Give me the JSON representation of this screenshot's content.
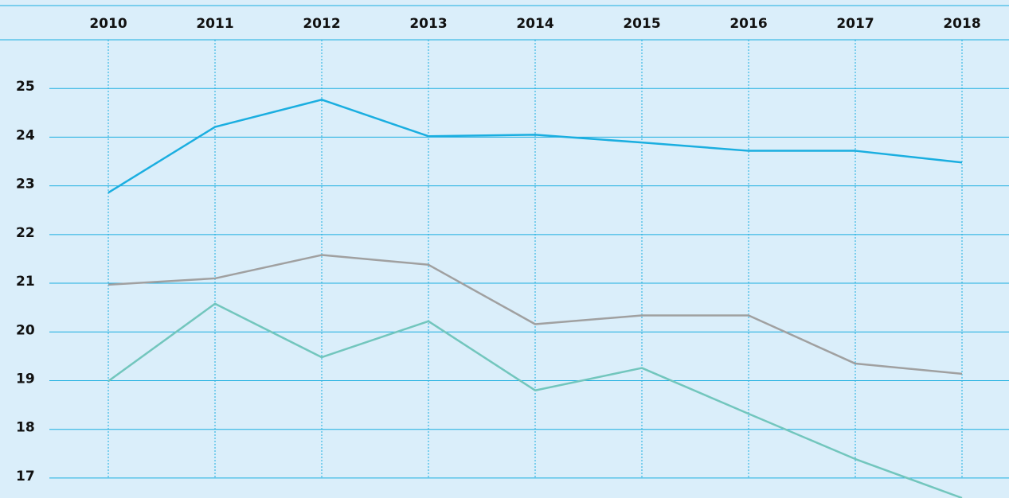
{
  "chart_data": {
    "type": "line",
    "categories": [
      "2010",
      "2011",
      "2012",
      "2013",
      "2014",
      "2015",
      "2016",
      "2017",
      "2018"
    ],
    "series": [
      {
        "color": "#1aaee0",
        "values": [
          22.86,
          24.21,
          24.77,
          24.02,
          24.05,
          23.89,
          23.72,
          23.72,
          23.48
        ]
      },
      {
        "color": "#a0a0a0",
        "values": [
          20.97,
          21.1,
          21.58,
          21.38,
          20.16,
          20.34,
          20.34,
          19.35,
          19.14
        ]
      },
      {
        "color": "#72c6bd",
        "values": [
          18.99,
          20.58,
          19.48,
          20.22,
          18.8,
          19.26,
          18.32,
          17.39,
          16.59
        ]
      }
    ],
    "ylim": [
      16.59,
      26
    ],
    "yticks": [
      17,
      18,
      19,
      20,
      21,
      22,
      23,
      24,
      25
    ],
    "grid": true
  }
}
